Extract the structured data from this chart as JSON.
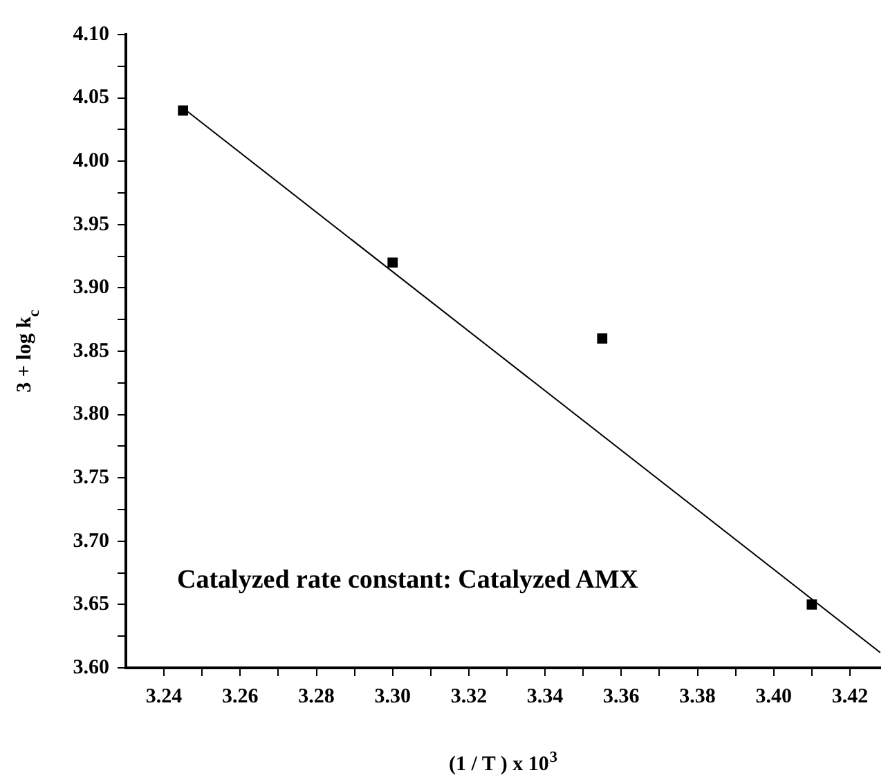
{
  "chart_data": {
    "type": "scatter",
    "xlabel": "(1 / T ) x 10$^{3}$",
    "ylabel": "3 + log k$_{c}$",
    "annotations": [
      "Catalyzed rate constant: Catalyzed AMX"
    ],
    "xlim": [
      3.23,
      3.428
    ],
    "xticks": [
      3.24,
      {
        "value": 3.25,
        "label": null
      },
      3.26,
      {
        "value": 3.27,
        "label": null
      },
      3.28,
      {
        "value": 3.29,
        "label": null
      },
      {
        "value": 3.3,
        "label": "3.30"
      },
      {
        "value": 3.31,
        "label": null
      },
      3.32,
      {
        "value": 3.33,
        "label": null
      },
      3.34,
      {
        "value": 3.35,
        "label": null
      },
      3.36,
      {
        "value": 3.37,
        "label": null
      },
      3.38,
      {
        "value": 3.39,
        "label": null
      },
      {
        "value": 3.4,
        "label": "3.40"
      },
      {
        "value": 3.41,
        "label": null
      },
      3.42
    ],
    "ylim": [
      3.6,
      4.1
    ],
    "yticks": [
      {
        "value": 3.6,
        "label": "3.60"
      },
      {
        "value": 3.625,
        "label": null
      },
      3.65,
      {
        "value": 3.675,
        "label": null
      },
      {
        "value": 3.7,
        "label": "3.70"
      },
      {
        "value": 3.725,
        "label": null
      },
      3.75,
      {
        "value": 3.775,
        "label": null
      },
      {
        "value": 3.8,
        "label": "3.80"
      },
      {
        "value": 3.825,
        "label": null
      },
      3.85,
      {
        "value": 3.875,
        "label": null
      },
      {
        "value": 3.9,
        "label": "3.90"
      },
      {
        "value": 3.925,
        "label": null
      },
      3.95,
      {
        "value": 3.975,
        "label": null
      },
      {
        "value": 4.0,
        "label": "4.00"
      },
      {
        "value": 4.025,
        "label": null
      },
      4.05,
      {
        "value": 4.075,
        "label": null
      },
      {
        "value": 4.1,
        "label": "4.10"
      }
    ],
    "grid": false,
    "legend": false,
    "series": [
      {
        "color": "#000000",
        "marker": "square",
        "x": [
          3.245,
          3.3,
          3.355,
          3.41
        ],
        "values": [
          4.04,
          3.92,
          3.86,
          3.65
        ]
      },
      {
        "type": "line",
        "marker": "none",
        "color": "#000000",
        "x": [
          3.245,
          3.428
        ],
        "values": [
          4.042,
          3.612
        ]
      }
    ]
  }
}
